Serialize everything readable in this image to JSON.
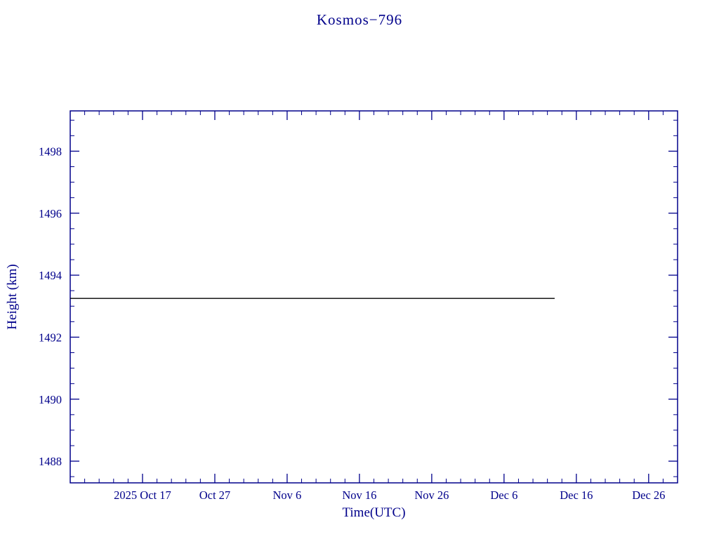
{
  "page": {
    "background": "#ffffff"
  },
  "chart_data": {
    "type": "line",
    "title": "Kosmos−796",
    "xlabel": "Time(UTC)",
    "ylabel": "Height (km)",
    "axis_color": "#00008b",
    "grid": false,
    "legend": "none",
    "x_domain_days": [
      0,
      84
    ],
    "x_domain_note": "day 0 corresponds to approximately 2025 Oct 7",
    "x_major_ticks": [
      {
        "day": 10,
        "label": "2025 Oct 17"
      },
      {
        "day": 20,
        "label": "Oct 27"
      },
      {
        "day": 30,
        "label": "Nov 6"
      },
      {
        "day": 40,
        "label": "Nov 16"
      },
      {
        "day": 50,
        "label": "Nov 26"
      },
      {
        "day": 60,
        "label": "Dec 6"
      },
      {
        "day": 70,
        "label": "Dec 16"
      },
      {
        "day": 80,
        "label": "Dec 26"
      }
    ],
    "x_minor_step_days": 2,
    "y_domain": [
      1487.3,
      1499.3
    ],
    "y_major_ticks": [
      1488,
      1490,
      1492,
      1494,
      1496,
      1498
    ],
    "y_minor_step": 0.5,
    "series": [
      {
        "name": "orbit-height",
        "color": "#000000",
        "points": [
          {
            "day": 0,
            "height_km": 1493.25
          },
          {
            "day": 67,
            "height_km": 1493.25
          }
        ]
      }
    ]
  }
}
